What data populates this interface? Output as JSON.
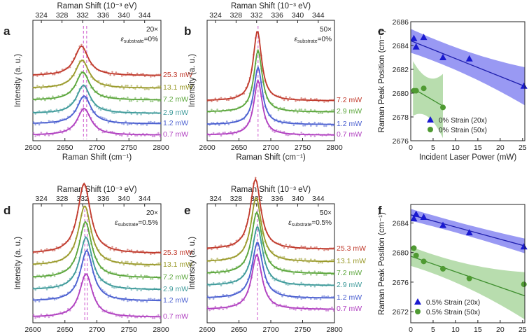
{
  "figure": "Raman spectra and peak positions versus laser power",
  "colors": {
    "axis": "#222222",
    "p25_3": "#c0392b",
    "p13_1": "#9a9a2b",
    "p7_2": "#5aa53a",
    "p2_9": "#3e9a9a",
    "p1_2": "#4a5fd0",
    "p0_7": "#b03fc0",
    "blue_fit": "#1f1fae",
    "blue_band": "#7f7ff0",
    "green_fit": "#3f8f2f",
    "green_band": "#a6d49a",
    "dash": "#cc55cc"
  },
  "chart_data": [
    {
      "panel": "a",
      "type": "line",
      "title": "",
      "xlabel": "Raman Shift (cm⁻¹)",
      "ylabel": "Intensity (a. u.)",
      "top_axis_label": "Raman Shift (10⁻³ eV)",
      "top_ticks": [
        "324",
        "328",
        "332",
        "336",
        "340",
        "344"
      ],
      "xlim": [
        2600,
        2800
      ],
      "xticks": [
        "2600",
        "2650",
        "2700",
        "2750",
        "2800"
      ],
      "annotation_obj": "20×",
      "annotation_strain": "ε",
      "annotation_strain_sub": "substrate",
      "annotation_strain_val": "=0%",
      "series": [
        {
          "name": "25.3 mW",
          "color_key": "p25_3",
          "center": 2676,
          "width": 26,
          "amp": 42,
          "base": 108
        },
        {
          "name": "13.1 mW",
          "color_key": "p13_1",
          "center": 2677,
          "width": 26,
          "amp": 40,
          "base": 126
        },
        {
          "name": "7.2 mW",
          "color_key": "p7_2",
          "center": 2678,
          "width": 26,
          "amp": 40,
          "base": 143
        },
        {
          "name": "2.9 mW",
          "color_key": "p2_9",
          "center": 2679,
          "width": 26,
          "amp": 40,
          "base": 162
        },
        {
          "name": "1.2 mW",
          "color_key": "p1_2",
          "center": 2680,
          "width": 26,
          "amp": 40,
          "base": 177
        },
        {
          "name": "0.7 mW",
          "color_key": "p0_7",
          "center": 2680,
          "width": 26,
          "amp": 38,
          "base": 193
        }
      ],
      "dashed_lines": [
        2679,
        2684
      ]
    },
    {
      "panel": "b",
      "type": "line",
      "title": "",
      "xlabel": "Raman Shift (cm⁻¹)",
      "ylabel": "Intensity (a. u.)",
      "top_axis_label": "Raman Shift (10⁻³ eV)",
      "top_ticks": [
        "324",
        "328",
        "332",
        "336",
        "340",
        "344"
      ],
      "xlim": [
        2600,
        2800
      ],
      "xticks": [
        "2600",
        "2650",
        "2700",
        "2750",
        "2800"
      ],
      "annotation_obj": "50×",
      "annotation_strain": "ε",
      "annotation_strain_sub": "substrate",
      "annotation_strain_val": "=0%",
      "series": [
        {
          "name": "7.2 mW",
          "color_key": "p25_3",
          "center": 2679,
          "width": 16,
          "amp": 100,
          "base": 144
        },
        {
          "name": "2.9 mW",
          "color_key": "p7_2",
          "center": 2680,
          "width": 16,
          "amp": 88,
          "base": 160
        },
        {
          "name": "1.2 mW",
          "color_key": "p1_2",
          "center": 2680,
          "width": 16,
          "amp": 82,
          "base": 178
        },
        {
          "name": "0.7 mW",
          "color_key": "p0_7",
          "center": 2680,
          "width": 16,
          "amp": 78,
          "base": 193
        }
      ],
      "dashed_lines": [
        2680
      ]
    },
    {
      "panel": "c",
      "type": "scatter",
      "title": "",
      "xlabel": "Incident Laser Power (mW)",
      "ylabel": "Raman Peak Position (cm⁻¹)",
      "xlim": [
        0,
        25.5
      ],
      "ylim": [
        2676,
        2686
      ],
      "xticks": [
        "0",
        "5",
        "10",
        "15",
        "20",
        "25"
      ],
      "yticks": [
        "2676",
        "2678",
        "2680",
        "2682",
        "2684",
        "2686"
      ],
      "legend_position": "bottom-right",
      "series": [
        {
          "name": "0% Strain (20x)",
          "marker": "triangle",
          "color_key": "blue_fit",
          "band_key": "blue_band",
          "x": [
            0.7,
            1.2,
            2.9,
            7.2,
            13.1,
            25.3
          ],
          "y": [
            2684.6,
            2683.9,
            2684.7,
            2683.0,
            2682.9,
            2680.6
          ],
          "fit": [
            2684.4,
            -0.15
          ],
          "band_halfwidth": [
            1.0,
            0.7,
            1.6
          ]
        },
        {
          "name": "0% Strain (50x)",
          "marker": "circle",
          "color_key": "green_fit",
          "band_key": "green_band",
          "x": [
            0.7,
            1.2,
            2.9,
            7.2
          ],
          "y": [
            2680.2,
            2680.2,
            2680.4,
            2678.8
          ],
          "fit": [
            2680.5,
            -0.22
          ],
          "band_halfwidth": [
            2.3,
            0.8,
            2.7
          ],
          "fit_range": [
            0.5,
            7.2
          ]
        }
      ]
    },
    {
      "panel": "d",
      "type": "line",
      "title": "",
      "xlabel": "Raman Shift (cm⁻¹)",
      "ylabel": "Intensity (a. u.)",
      "top_axis_label": "Raman Shift (10⁻³ eV)",
      "top_ticks": [
        "324",
        "328",
        "332",
        "336",
        "340",
        "344"
      ],
      "xlim": [
        2600,
        2800
      ],
      "xticks": [
        "2600",
        "2650",
        "2700",
        "2750",
        "2800"
      ],
      "annotation_obj": "20×",
      "annotation_strain": "ε",
      "annotation_strain_sub": "substrate",
      "annotation_strain_val": "=0.5%",
      "series": [
        {
          "name": "25.3 mW",
          "color_key": "p25_3",
          "center": 2680,
          "width": 24,
          "amp": 100,
          "base": 362
        },
        {
          "name": "13.1 mW",
          "color_key": "p13_1",
          "center": 2681,
          "width": 24,
          "amp": 85,
          "base": 379
        },
        {
          "name": "7.2 mW",
          "color_key": "p7_2",
          "center": 2682,
          "width": 24,
          "amp": 80,
          "base": 397
        },
        {
          "name": "2.9 mW",
          "color_key": "p2_9",
          "center": 2683,
          "width": 24,
          "amp": 75,
          "base": 414
        },
        {
          "name": "1.2 mW",
          "color_key": "p1_2",
          "center": 2684,
          "width": 24,
          "amp": 72,
          "base": 430
        },
        {
          "name": "0.7 mW",
          "color_key": "p0_7",
          "center": 2683,
          "width": 24,
          "amp": 62,
          "base": 453
        }
      ],
      "dashed_lines": [
        2681,
        2685
      ]
    },
    {
      "panel": "e",
      "type": "line",
      "title": "",
      "xlabel": "Raman Shift (cm⁻¹)",
      "ylabel": "Intensity (a. u.)",
      "top_axis_label": "Raman Shift (10⁻³ eV)",
      "top_ticks": [
        "324",
        "328",
        "332",
        "336",
        "340",
        "344"
      ],
      "xlim": [
        2600,
        2800
      ],
      "xticks": [
        "2600",
        "2650",
        "2700",
        "2750",
        "2800"
      ],
      "annotation_obj": "50×",
      "annotation_strain": "ε",
      "annotation_strain_sub": "substrate",
      "annotation_strain_val": "=0.5%",
      "series": [
        {
          "name": "25.3 mW",
          "color_key": "p25_3",
          "center": 2676,
          "width": 20,
          "amp": 100,
          "base": 356
        },
        {
          "name": "13.1 mW",
          "color_key": "p13_1",
          "center": 2677,
          "width": 20,
          "amp": 92,
          "base": 374
        },
        {
          "name": "7.2 mW",
          "color_key": "p7_2",
          "center": 2678,
          "width": 20,
          "amp": 88,
          "base": 391
        },
        {
          "name": "2.9 mW",
          "color_key": "p2_9",
          "center": 2679,
          "width": 20,
          "amp": 84,
          "base": 408
        },
        {
          "name": "1.2 mW",
          "color_key": "p1_2",
          "center": 2679,
          "width": 20,
          "amp": 80,
          "base": 426
        },
        {
          "name": "0.7 mW",
          "color_key": "p0_7",
          "center": 2678,
          "width": 20,
          "amp": 78,
          "base": 442
        }
      ],
      "dashed_lines": [
        2679
      ]
    },
    {
      "panel": "f",
      "type": "scatter",
      "title": "",
      "xlabel": "Incident Laser Power (mW)",
      "ylabel": "Raman Peak Position (cm⁻¹)",
      "xlim": [
        0,
        25.5
      ],
      "ylim": [
        2670.5,
        2686.5
      ],
      "xticks": [
        "0",
        "5",
        "10",
        "15",
        "20",
        "25"
      ],
      "yticks": [
        "2672",
        "2676",
        "2680",
        "2684"
      ],
      "legend_position": "bottom-left",
      "series": [
        {
          "name": "0.5% Strain (20x)",
          "marker": "triangle",
          "color_key": "blue_fit",
          "band_key": "blue_band",
          "x": [
            0.7,
            1.2,
            2.9,
            7.2,
            13.1,
            25.3
          ],
          "y": [
            2684.6,
            2685.2,
            2684.8,
            2683.7,
            2682.7,
            2680.8
          ],
          "fit": [
            2685.1,
            -0.165
          ],
          "band_halfwidth": [
            0.8,
            0.6,
            1.0
          ]
        },
        {
          "name": "0.5% Strain (50x)",
          "marker": "circle",
          "color_key": "green_fit",
          "band_key": "green_band",
          "x": [
            0.7,
            1.2,
            2.9,
            7.2,
            13.1,
            25.3
          ],
          "y": [
            2680.6,
            2679.6,
            2678.8,
            2677.8,
            2676.5,
            2675.7
          ],
          "fit": [
            2679.5,
            -0.21
          ],
          "band_halfwidth": [
            1.3,
            1.0,
            3.2
          ]
        }
      ]
    }
  ]
}
